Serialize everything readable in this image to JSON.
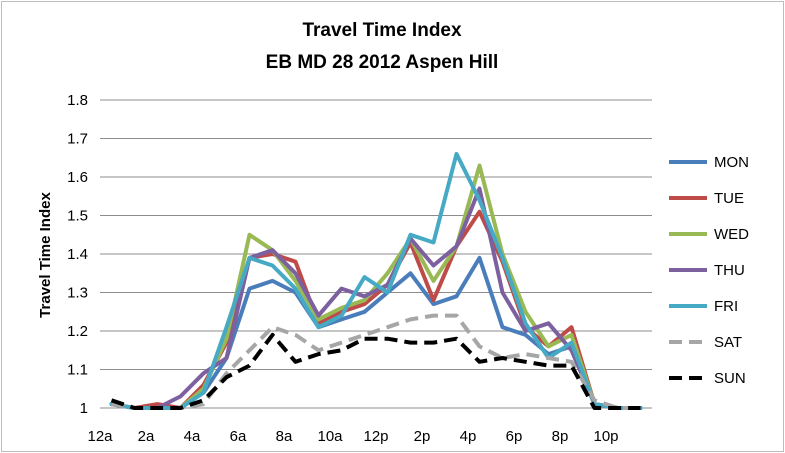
{
  "chart_data": {
    "type": "line",
    "title": "Travel Time Index",
    "subtitle": "EB MD 28 2012 Aspen Hill",
    "xlabel": "",
    "ylabel": "Travel Time Index",
    "ylim": [
      1,
      1.8
    ],
    "yticks": [
      "1",
      "1.1",
      "1.2",
      "1.3",
      "1.4",
      "1.5",
      "1.6",
      "1.7",
      "1.8"
    ],
    "xticks": [
      "12a",
      "2a",
      "4a",
      "6a",
      "8a",
      "10a",
      "12p",
      "2p",
      "4p",
      "6p",
      "8p",
      "10p"
    ],
    "x": [
      0,
      1,
      2,
      3,
      4,
      5,
      6,
      7,
      8,
      9,
      10,
      11,
      12,
      13,
      14,
      15,
      16,
      17,
      18,
      19,
      20,
      21,
      22,
      23
    ],
    "grid": "horizontal",
    "legend_position": "right",
    "series": [
      {
        "name": "MON",
        "color": "#4a7ebb",
        "dash": "solid",
        "values": [
          1.01,
          1.0,
          1.0,
          1.0,
          1.04,
          1.13,
          1.31,
          1.33,
          1.3,
          1.21,
          1.23,
          1.25,
          1.3,
          1.35,
          1.27,
          1.29,
          1.39,
          1.21,
          1.19,
          1.14,
          1.16,
          1.01,
          1.0,
          1.0
        ]
      },
      {
        "name": "TUE",
        "color": "#be4b48",
        "dash": "solid",
        "values": [
          1.01,
          1.0,
          1.01,
          1.0,
          1.06,
          1.17,
          1.39,
          1.4,
          1.38,
          1.22,
          1.25,
          1.27,
          1.32,
          1.43,
          1.28,
          1.42,
          1.51,
          1.38,
          1.21,
          1.16,
          1.21,
          1.01,
          1.0,
          1.0
        ]
      },
      {
        "name": "WED",
        "color": "#98b954",
        "dash": "solid",
        "values": [
          1.01,
          1.0,
          1.0,
          1.0,
          1.05,
          1.18,
          1.45,
          1.41,
          1.33,
          1.23,
          1.26,
          1.28,
          1.35,
          1.44,
          1.33,
          1.42,
          1.63,
          1.4,
          1.25,
          1.16,
          1.19,
          1.01,
          1.0,
          1.0
        ]
      },
      {
        "name": "THU",
        "color": "#7d60a0",
        "dash": "solid",
        "values": [
          1.01,
          1.0,
          1.0,
          1.03,
          1.09,
          1.13,
          1.39,
          1.41,
          1.35,
          1.24,
          1.31,
          1.29,
          1.32,
          1.44,
          1.37,
          1.42,
          1.57,
          1.3,
          1.2,
          1.22,
          1.15,
          1.01,
          1.0,
          1.0
        ]
      },
      {
        "name": "FRI",
        "color": "#46aac5",
        "dash": "solid",
        "values": [
          1.01,
          1.0,
          1.0,
          1.0,
          1.04,
          1.21,
          1.39,
          1.37,
          1.31,
          1.21,
          1.24,
          1.34,
          1.3,
          1.45,
          1.43,
          1.66,
          1.54,
          1.39,
          1.22,
          1.13,
          1.17,
          1.01,
          1.0,
          1.0
        ]
      },
      {
        "name": "SAT",
        "color": "#a6a6a6",
        "dash": "dash",
        "values": [
          1.01,
          1.0,
          1.0,
          1.0,
          1.01,
          1.09,
          1.15,
          1.21,
          1.19,
          1.15,
          1.17,
          1.19,
          1.21,
          1.23,
          1.24,
          1.24,
          1.16,
          1.13,
          1.14,
          1.13,
          1.12,
          1.02,
          1.0,
          1.0
        ]
      },
      {
        "name": "SUN",
        "color": "#000000",
        "dash": "dash",
        "values": [
          1.02,
          1.0,
          1.0,
          1.0,
          1.02,
          1.08,
          1.11,
          1.19,
          1.12,
          1.14,
          1.15,
          1.18,
          1.18,
          1.17,
          1.17,
          1.18,
          1.12,
          1.13,
          1.12,
          1.11,
          1.11,
          1.0,
          1.0,
          1.0
        ]
      }
    ]
  }
}
